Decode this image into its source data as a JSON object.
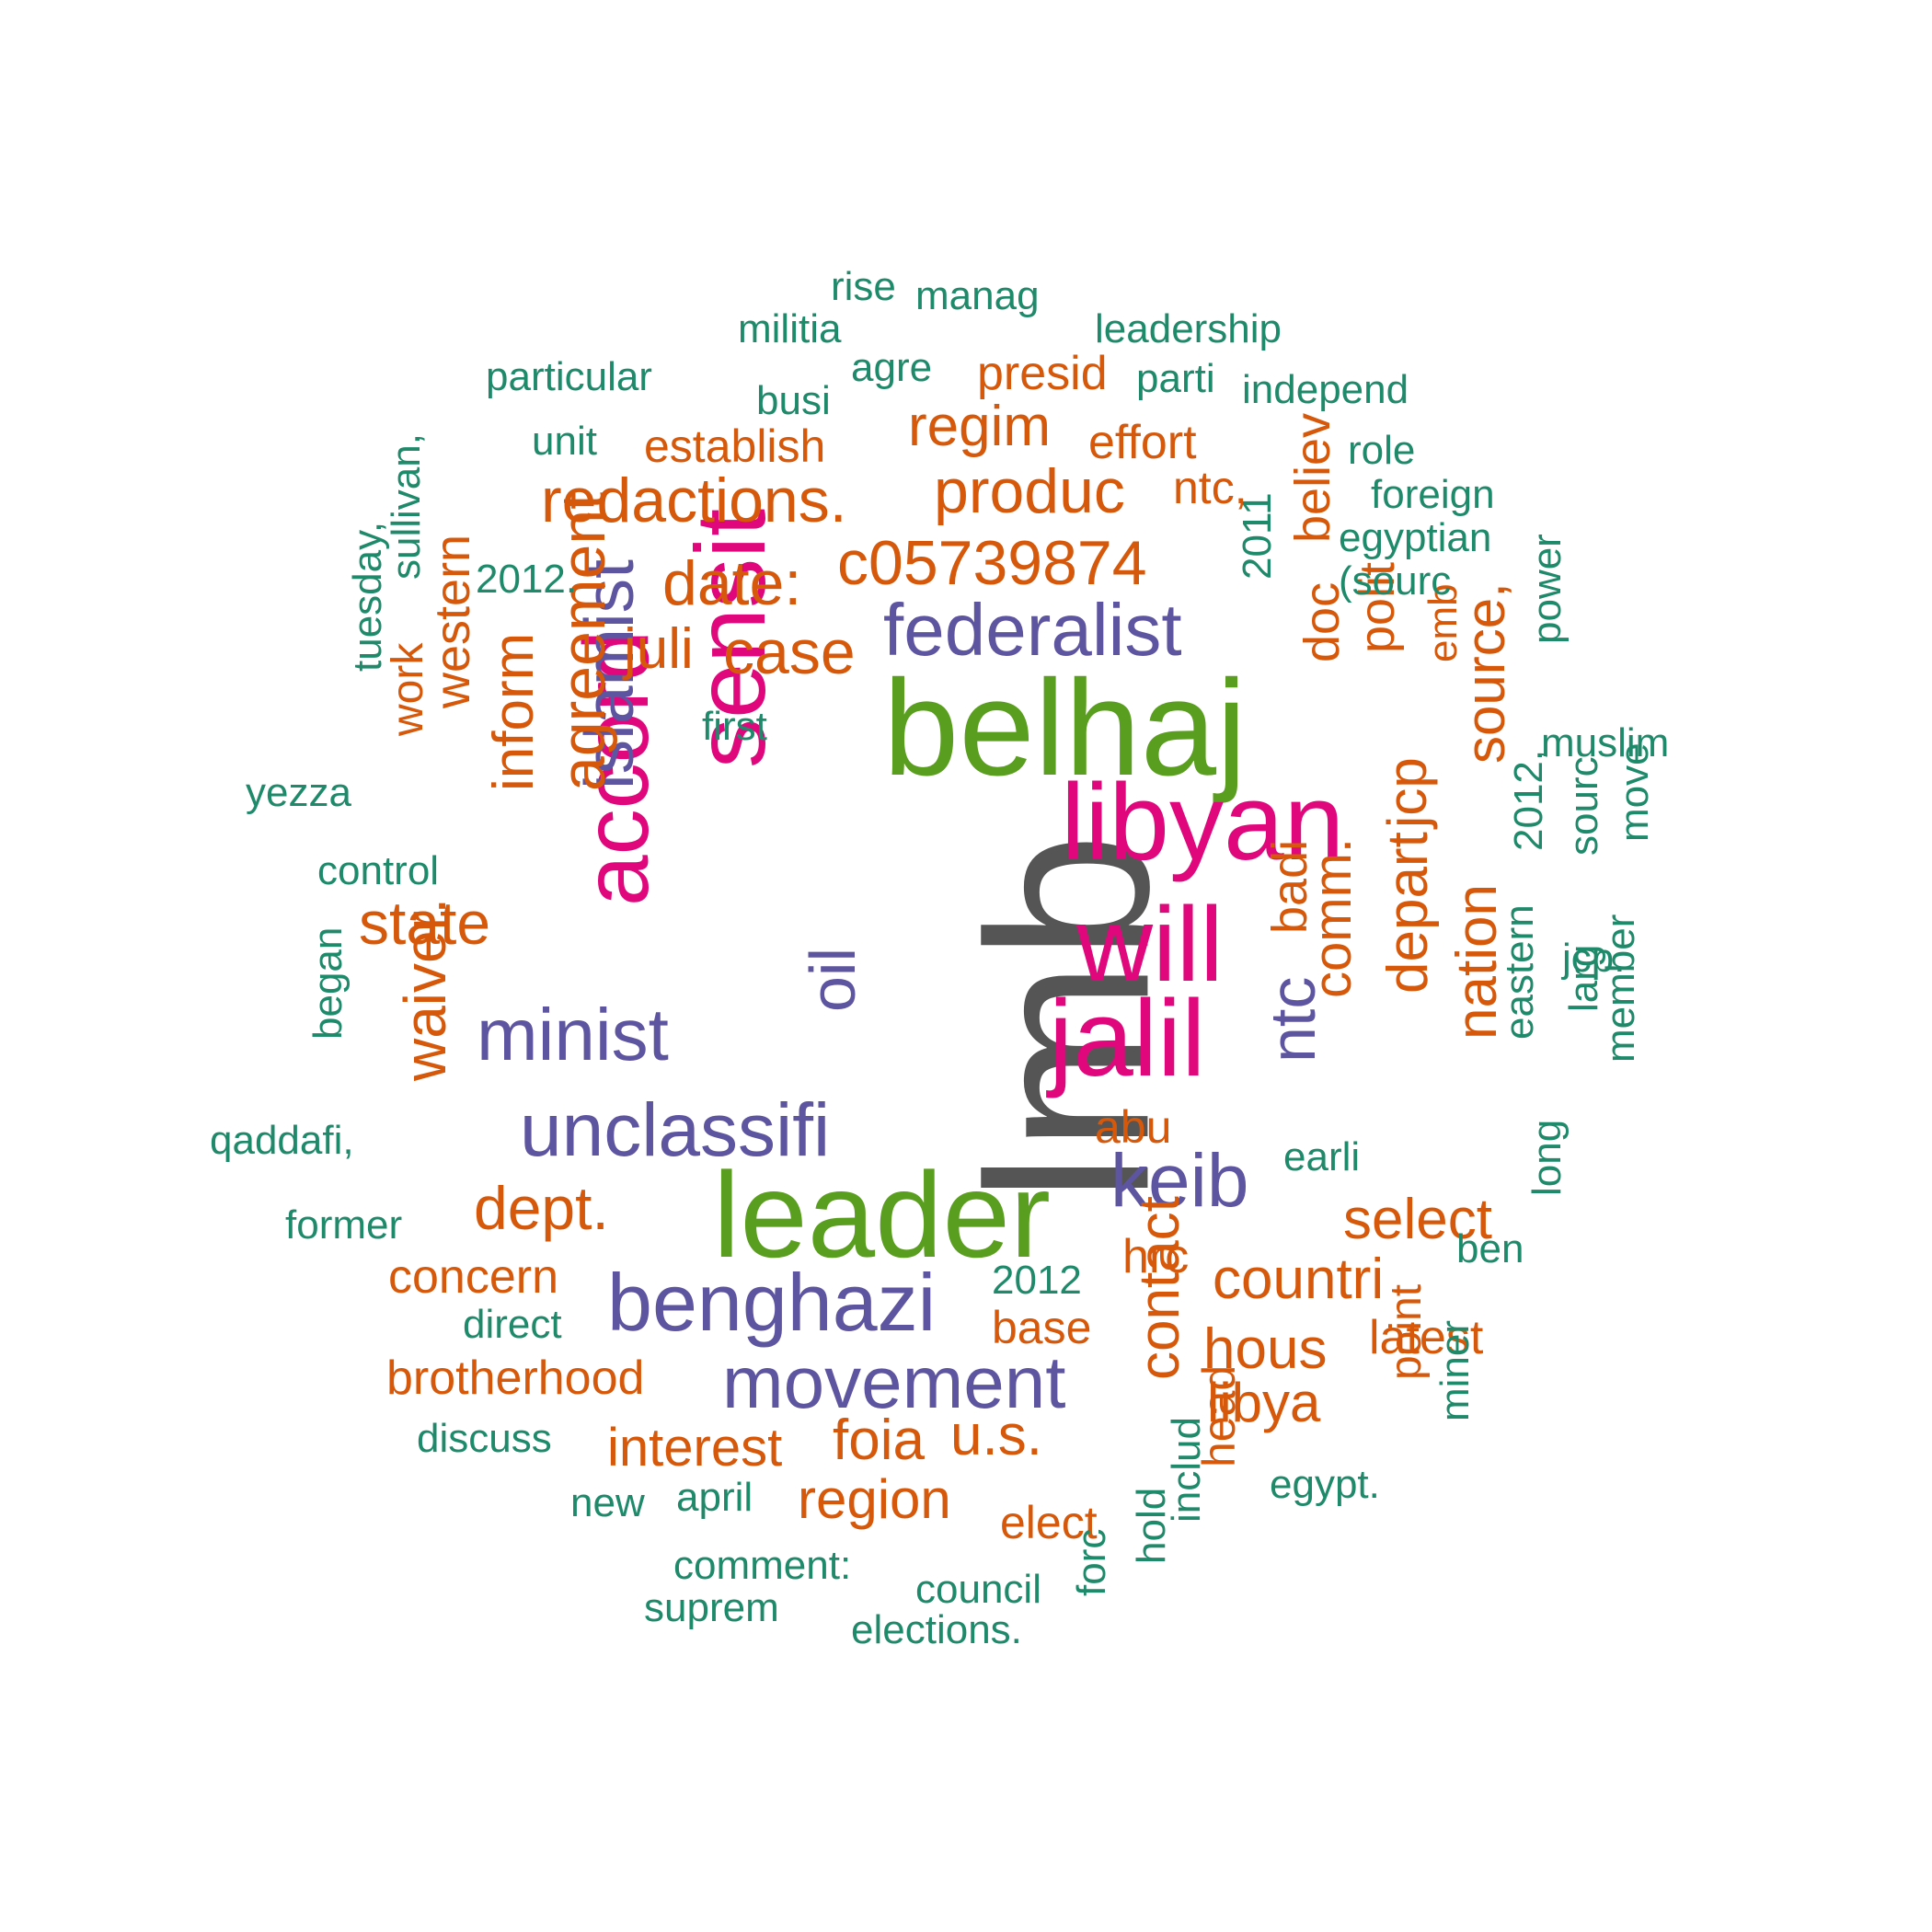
{
  "palette": {
    "tier1": "#555555",
    "tier2": "#5a9e1f",
    "tier3": "#e0077d",
    "tier4": "#5e55a0",
    "tier5": "#d6590b",
    "tier6": "#1f8a6a"
  },
  "words": [
    {
      "text": "lmb",
      "tier": 1
    },
    {
      "text": "belhaj",
      "tier": 2
    },
    {
      "text": "leader",
      "tier": 2
    },
    {
      "text": "libyan",
      "tier": 3
    },
    {
      "text": "will",
      "tier": 3
    },
    {
      "text": "jalil",
      "tier": 3
    },
    {
      "text": "sensit",
      "tier": 3
    },
    {
      "text": "accord",
      "tier": 3
    },
    {
      "text": "federalist",
      "tier": 4
    },
    {
      "text": "islamist",
      "tier": 4
    },
    {
      "text": "oil",
      "tier": 4
    },
    {
      "text": "minist",
      "tier": 4
    },
    {
      "text": "unclassifi",
      "tier": 4
    },
    {
      "text": "keib",
      "tier": 4
    },
    {
      "text": "ntc",
      "tier": 4
    },
    {
      "text": "benghazi",
      "tier": 4
    },
    {
      "text": "movement",
      "tier": 4
    },
    {
      "text": "redactions.",
      "tier": 5
    },
    {
      "text": "produc",
      "tier": 5
    },
    {
      "text": "regim",
      "tier": 5
    },
    {
      "text": "c05739874",
      "tier": 5
    },
    {
      "text": "date:",
      "tier": 5
    },
    {
      "text": "case",
      "tier": 5
    },
    {
      "text": "juli",
      "tier": 5
    },
    {
      "text": "agreement",
      "tier": 5
    },
    {
      "text": "inform",
      "tier": 5
    },
    {
      "text": "state",
      "tier": 5
    },
    {
      "text": "waiver.",
      "tier": 5
    },
    {
      "text": "dept.",
      "tier": 5
    },
    {
      "text": "western",
      "tier": 5
    },
    {
      "text": "work",
      "tier": 5
    },
    {
      "text": "establish",
      "tier": 5
    },
    {
      "text": "presid",
      "tier": 5
    },
    {
      "text": "effort",
      "tier": 5
    },
    {
      "text": "ntc,",
      "tier": 5
    },
    {
      "text": "believ",
      "tier": 5
    },
    {
      "text": "doc",
      "tier": 5
    },
    {
      "text": "polit",
      "tier": 5
    },
    {
      "text": "emb",
      "tier": 5
    },
    {
      "text": "source,",
      "tier": 5
    },
    {
      "text": "jcp",
      "tier": 5
    },
    {
      "text": "depart",
      "tier": 5
    },
    {
      "text": "comm.",
      "tier": 5
    },
    {
      "text": "badi",
      "tier": 5
    },
    {
      "text": "nation",
      "tier": 5
    },
    {
      "text": "select",
      "tier": 5
    },
    {
      "text": "countri",
      "tier": 5
    },
    {
      "text": "hous",
      "tier": 5
    },
    {
      "text": "libya",
      "tier": 5
    },
    {
      "text": "latest",
      "tier": 5
    },
    {
      "text": "point",
      "tier": 5
    },
    {
      "text": "hrc",
      "tier": 5
    },
    {
      "text": "contact",
      "tier": 5
    },
    {
      "text": "abu",
      "tier": 5
    },
    {
      "text": "base",
      "tier": 5
    },
    {
      "text": "concern",
      "tier": 5
    },
    {
      "text": "brotherhood",
      "tier": 5
    },
    {
      "text": "interest",
      "tier": 5
    },
    {
      "text": "foia",
      "tier": 5
    },
    {
      "text": "u.s.",
      "tier": 5
    },
    {
      "text": "region",
      "tier": 5
    },
    {
      "text": "elect",
      "tier": 5
    },
    {
      "text": "head",
      "tier": 5
    },
    {
      "text": "rise",
      "tier": 6
    },
    {
      "text": "manag",
      "tier": 6
    },
    {
      "text": "militia",
      "tier": 6
    },
    {
      "text": "leadership",
      "tier": 6
    },
    {
      "text": "particular",
      "tier": 6
    },
    {
      "text": "agre",
      "tier": 6
    },
    {
      "text": "busi",
      "tier": 6
    },
    {
      "text": "parti",
      "tier": 6
    },
    {
      "text": "independ",
      "tier": 6
    },
    {
      "text": "unit",
      "tier": 6
    },
    {
      "text": "role",
      "tier": 6
    },
    {
      "text": "foreign",
      "tier": 6
    },
    {
      "text": "sullivan,",
      "tier": 6
    },
    {
      "text": "egyptian",
      "tier": 6
    },
    {
      "text": "2011",
      "tier": 6
    },
    {
      "text": "2012.",
      "tier": 6
    },
    {
      "text": "(sourc",
      "tier": 6
    },
    {
      "text": "tuesday,",
      "tier": 6
    },
    {
      "text": "power",
      "tier": 6
    },
    {
      "text": "first",
      "tier": 6
    },
    {
      "text": "muslim",
      "tier": 6
    },
    {
      "text": "yezza",
      "tier": 6
    },
    {
      "text": "control",
      "tier": 6
    },
    {
      "text": "2012,",
      "tier": 6
    },
    {
      "text": "sourc",
      "tier": 6
    },
    {
      "text": "move",
      "tier": 6
    },
    {
      "text": "jcp.",
      "tier": 6
    },
    {
      "text": "larg",
      "tier": 6
    },
    {
      "text": "began",
      "tier": 6
    },
    {
      "text": "eastern",
      "tier": 6
    },
    {
      "text": "member",
      "tier": 6
    },
    {
      "text": "qaddafi,",
      "tier": 6
    },
    {
      "text": "earli",
      "tier": 6
    },
    {
      "text": "former",
      "tier": 6
    },
    {
      "text": "long",
      "tier": 6
    },
    {
      "text": "ben",
      "tier": 6
    },
    {
      "text": "2012",
      "tier": 6
    },
    {
      "text": "direct",
      "tier": 6
    },
    {
      "text": "miner",
      "tier": 6
    },
    {
      "text": "discuss",
      "tier": 6
    },
    {
      "text": "new",
      "tier": 6
    },
    {
      "text": "april",
      "tier": 6
    },
    {
      "text": "includ",
      "tier": 6
    },
    {
      "text": "egypt.",
      "tier": 6
    },
    {
      "text": "hold",
      "tier": 6
    },
    {
      "text": "comment:",
      "tier": 6
    },
    {
      "text": "council",
      "tier": 6
    },
    {
      "text": "forc",
      "tier": 6
    },
    {
      "text": "suprem",
      "tier": 6
    },
    {
      "text": "elections.",
      "tier": 6
    }
  ]
}
